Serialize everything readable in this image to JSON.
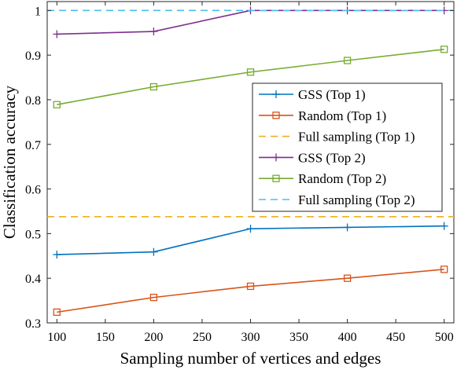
{
  "chart_data": {
    "type": "line",
    "title": "",
    "xlabel": "Sampling number of vertices and edges",
    "ylabel": "Classification accuracy",
    "xlim": [
      90,
      510
    ],
    "ylim": [
      0.3,
      1.02
    ],
    "xticks": [
      100,
      150,
      200,
      250,
      300,
      350,
      400,
      450,
      500
    ],
    "xtick_labels": [
      "100",
      "150",
      "200",
      "250",
      "300",
      "350",
      "400",
      "450",
      "500"
    ],
    "yticks": [
      0.3,
      0.4,
      0.5,
      0.6,
      0.7,
      0.8,
      0.9,
      1.0
    ],
    "ytick_labels": [
      "0.3",
      "0.4",
      "0.5",
      "0.6",
      "0.7",
      "0.8",
      "0.9",
      "1"
    ],
    "grid": false,
    "legend_position": "center-right",
    "series": [
      {
        "name": "GSS (Top 1)",
        "color": "#0072BD",
        "marker": "plus",
        "dash": "solid",
        "x": [
          100,
          200,
          300,
          400,
          500
        ],
        "y": [
          0.453,
          0.459,
          0.511,
          0.514,
          0.517
        ]
      },
      {
        "name": "Random (Top 1)",
        "color": "#D95319",
        "marker": "square",
        "dash": "solid",
        "x": [
          100,
          200,
          300,
          400,
          500
        ],
        "y": [
          0.324,
          0.357,
          0.382,
          0.4,
          0.42
        ]
      },
      {
        "name": "Full sampling (Top 1)",
        "color": "#EDB120",
        "marker": "none",
        "dash": "dashed",
        "x": [
          90,
          510
        ],
        "y": [
          0.538,
          0.538
        ]
      },
      {
        "name": "GSS (Top 2)",
        "color": "#7E2F8E",
        "marker": "plus",
        "dash": "solid",
        "x": [
          100,
          200,
          300,
          400,
          500
        ],
        "y": [
          0.947,
          0.953,
          1.0,
          1.0,
          1.0
        ]
      },
      {
        "name": "Random (Top 2)",
        "color": "#77AC30",
        "marker": "square",
        "dash": "solid",
        "x": [
          100,
          200,
          300,
          400,
          500
        ],
        "y": [
          0.789,
          0.829,
          0.862,
          0.888,
          0.913
        ]
      },
      {
        "name": "Full sampling (Top 2)",
        "color": "#4DBEEE",
        "marker": "none",
        "dash": "dashed",
        "x": [
          90,
          510
        ],
        "y": [
          1.0,
          1.0
        ]
      }
    ]
  }
}
